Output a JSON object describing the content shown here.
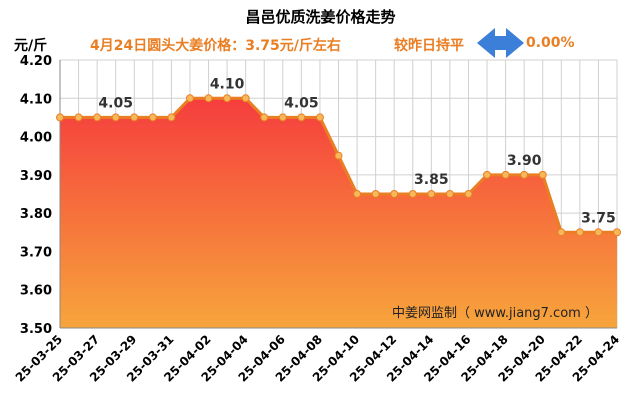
{
  "chart_data": {
    "type": "area",
    "title": "昌邑优质洗姜价格走势",
    "ylabel": "元/斤",
    "annotation_price": "4月24日圆头大姜价格：3.75元/斤左右",
    "annotation_compare": "较昨日持平",
    "annotation_change": "0.00%",
    "watermark": "中姜网监制（ www.jiang7.com ）",
    "ylim": [
      3.5,
      4.2
    ],
    "yticks": [
      "3.50",
      "3.60",
      "3.70",
      "3.80",
      "3.90",
      "4.00",
      "4.10",
      "4.20"
    ],
    "x": [
      "25-03-25",
      "25-03-26",
      "25-03-27",
      "25-03-28",
      "25-03-29",
      "25-03-30",
      "25-03-31",
      "25-04-01",
      "25-04-02",
      "25-04-03",
      "25-04-04",
      "25-04-05",
      "25-04-06",
      "25-04-07",
      "25-04-08",
      "25-04-09",
      "25-04-10",
      "25-04-11",
      "25-04-12",
      "25-04-13",
      "25-04-14",
      "25-04-15",
      "25-04-16",
      "25-04-17",
      "25-04-18",
      "25-04-19",
      "25-04-20",
      "25-04-21",
      "25-04-22",
      "25-04-23",
      "25-04-24"
    ],
    "xtick_labels": [
      "25-03-25",
      "25-03-27",
      "25-03-29",
      "25-03-31",
      "25-04-02",
      "25-04-04",
      "25-04-06",
      "25-04-08",
      "25-04-10",
      "25-04-12",
      "25-04-14",
      "25-04-16",
      "25-04-18",
      "25-04-20",
      "25-04-22",
      "25-04-24"
    ],
    "values": [
      4.05,
      4.05,
      4.05,
      4.05,
      4.05,
      4.05,
      4.05,
      4.1,
      4.1,
      4.1,
      4.1,
      4.05,
      4.05,
      4.05,
      4.05,
      3.95,
      3.85,
      3.85,
      3.85,
      3.85,
      3.85,
      3.85,
      3.85,
      3.9,
      3.9,
      3.9,
      3.9,
      3.75,
      3.75,
      3.75,
      3.75
    ],
    "data_labels": [
      {
        "x": "25-03-28",
        "text": "4.05"
      },
      {
        "x": "25-04-03",
        "text": "4.10"
      },
      {
        "x": "25-04-07",
        "text": "4.05"
      },
      {
        "x": "25-04-14",
        "text": "3.85"
      },
      {
        "x": "25-04-19",
        "text": "3.90"
      },
      {
        "x": "25-04-23",
        "text": "3.75"
      }
    ],
    "grid": true,
    "colors": {
      "line": "#ea7e23",
      "fill_top": "#f53d3d",
      "fill_bottom": "#f7a53c",
      "marker": "#f5b85a",
      "arrow": "#3b7fd9",
      "label": "#333333"
    }
  }
}
